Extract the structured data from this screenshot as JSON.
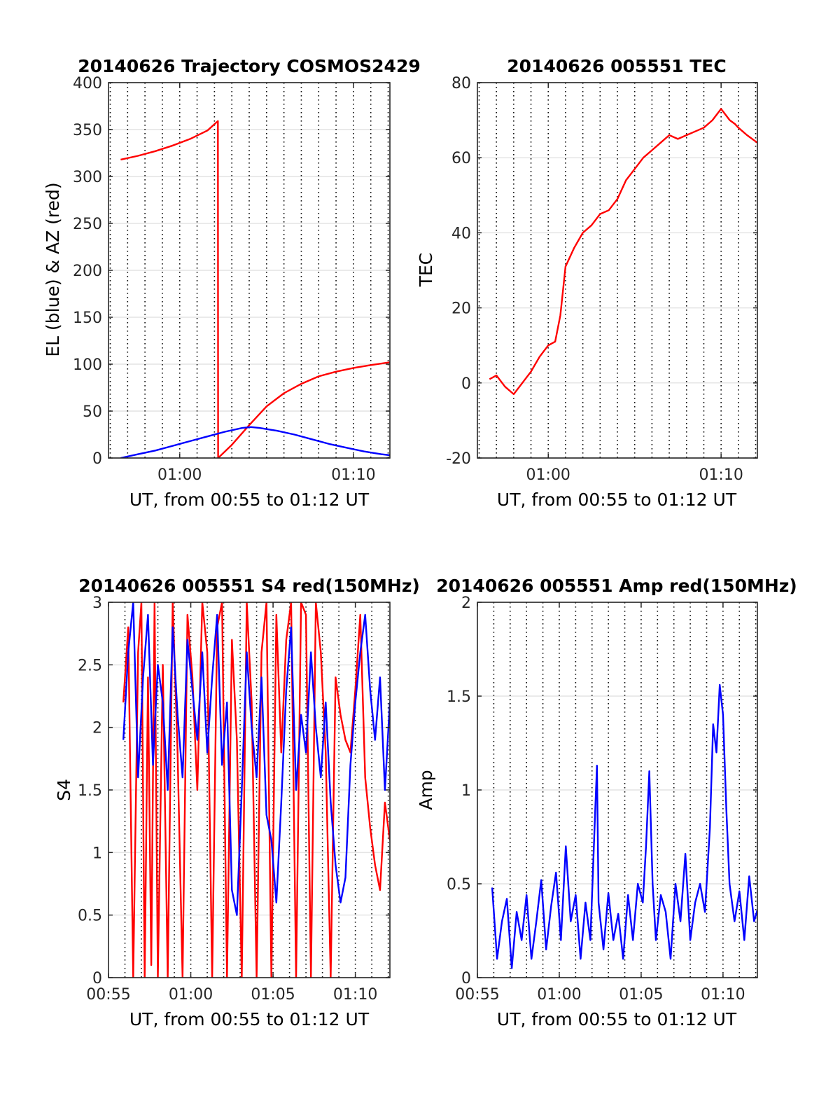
{
  "chart_data": [
    {
      "type": "line",
      "title": "20140626 Trajectory COSMOS2429",
      "xlabel": "UT, from 00:55 to 01:12 UT",
      "ylabel": "EL (blue) & AZ (red)",
      "x_unit": "minutes after 00:00 UT",
      "xlim": [
        55.9,
        72.1
      ],
      "ylim": [
        0,
        400
      ],
      "yticks": [
        0,
        50,
        100,
        150,
        200,
        250,
        300,
        350,
        400
      ],
      "xtick_values": [
        60,
        70
      ],
      "xtick_labels": [
        "01:00",
        "01:10"
      ],
      "grid": true,
      "series": [
        {
          "color": "#ff0000",
          "x": [
            56.6,
            57.6,
            58.6,
            59.6,
            60.6,
            61.6,
            62.2,
            62.21,
            63,
            64,
            65,
            66,
            67,
            68,
            69,
            70,
            71,
            72.1
          ],
          "y": [
            318,
            322,
            327,
            333,
            340,
            349,
            359,
            0,
            14,
            35,
            55,
            69,
            79,
            87,
            92,
            96,
            99,
            102
          ]
        },
        {
          "color": "#0000ff",
          "x": [
            56.6,
            57.6,
            58.6,
            59.6,
            60.6,
            61.6,
            62.6,
            63.6,
            64.1,
            64.6,
            65.6,
            66.6,
            67.6,
            68.6,
            69.6,
            70.6,
            71.6,
            72.1
          ],
          "y": [
            0,
            4,
            8,
            13,
            18,
            23,
            28,
            32,
            33,
            32,
            29,
            25,
            20,
            15,
            11,
            7,
            4,
            3
          ]
        }
      ]
    },
    {
      "type": "line",
      "title": "20140626 005551 TEC",
      "xlabel": "UT, from 00:55 to 01:12 UT",
      "ylabel": "TEC",
      "x_unit": "minutes after 00:00 UT",
      "xlim": [
        55.9,
        72.1
      ],
      "ylim": [
        -20,
        80
      ],
      "yticks": [
        -20,
        0,
        20,
        40,
        60,
        80
      ],
      "xtick_values": [
        60,
        70
      ],
      "xtick_labels": [
        "01:00",
        "01:10"
      ],
      "grid": true,
      "series": [
        {
          "color": "#ff0000",
          "x": [
            56.6,
            57.0,
            57.5,
            58.0,
            58.5,
            59.0,
            59.5,
            60.0,
            60.4,
            60.7,
            61.0,
            61.5,
            62.0,
            62.5,
            63.0,
            63.5,
            64.0,
            64.5,
            65.0,
            65.5,
            66.0,
            66.5,
            67.0,
            67.5,
            68.0,
            68.5,
            69.0,
            69.5,
            70.0,
            70.5,
            70.8,
            71.0,
            71.5,
            72.1
          ],
          "y": [
            1,
            2,
            -1,
            -3,
            0,
            3,
            7,
            10,
            11,
            18,
            31,
            36,
            40,
            42,
            45,
            46,
            49,
            54,
            57,
            60,
            62,
            64,
            66,
            65,
            66,
            67,
            68,
            70,
            73,
            70,
            69,
            68,
            66,
            64
          ]
        }
      ]
    },
    {
      "type": "line",
      "title": "20140626 005551 S4 red(150MHz)",
      "xlabel": "UT, from 00:55 to 01:12 UT",
      "ylabel": "S4",
      "x_unit": "minutes after 00:00 UT",
      "xlim": [
        55,
        72.1
      ],
      "ylim": [
        0,
        3
      ],
      "yticks": [
        0,
        0.5,
        1,
        1.5,
        2,
        2.5,
        3
      ],
      "xtick_values": [
        55,
        60,
        65,
        70
      ],
      "xtick_labels": [
        "00:55",
        "01:00",
        "01:05",
        "01:10"
      ],
      "grid": true,
      "series": [
        {
          "color": "#ff0000",
          "x": [
            55.9,
            56.2,
            56.5,
            56.8,
            57.0,
            57.2,
            57.4,
            57.6,
            57.8,
            58.0,
            58.3,
            58.6,
            58.9,
            59.2,
            59.5,
            59.8,
            60.1,
            60.4,
            60.7,
            61.0,
            61.3,
            61.6,
            61.9,
            62.2,
            62.5,
            62.8,
            63.1,
            63.4,
            63.7,
            64.0,
            64.3,
            64.6,
            64.9,
            65.2,
            65.5,
            65.8,
            66.1,
            66.4,
            66.7,
            67.0,
            67.3,
            67.6,
            67.9,
            68.2,
            68.5,
            68.8,
            69.1,
            69.4,
            69.7,
            70.0,
            70.3,
            70.6,
            70.9,
            71.2,
            71.5,
            71.8,
            72.1
          ],
          "y": [
            2.2,
            2.8,
            0,
            2.6,
            3,
            0,
            2.4,
            0.1,
            3,
            0,
            2.5,
            0,
            3,
            1.8,
            0,
            2.9,
            2.4,
            1.5,
            3,
            2.6,
            0,
            2.8,
            3,
            0,
            2.7,
            1.9,
            0,
            3,
            2.2,
            0,
            2.6,
            3,
            0,
            2.9,
            1.8,
            2.7,
            3,
            0,
            3,
            2.9,
            0,
            3,
            2.6,
            1.8,
            0,
            2.4,
            2.1,
            1.9,
            1.8,
            2.3,
            2.9,
            1.6,
            1.2,
            0.9,
            0.7,
            1.4,
            1.1
          ]
        },
        {
          "color": "#0000ff",
          "x": [
            55.9,
            56.2,
            56.5,
            56.8,
            57.1,
            57.4,
            57.7,
            58.0,
            58.3,
            58.6,
            58.9,
            59.2,
            59.5,
            59.8,
            60.1,
            60.4,
            60.7,
            61.0,
            61.3,
            61.6,
            61.9,
            62.2,
            62.5,
            62.8,
            63.1,
            63.4,
            63.7,
            64.0,
            64.3,
            64.6,
            64.9,
            65.2,
            65.5,
            65.8,
            66.1,
            66.4,
            66.7,
            67.0,
            67.3,
            67.6,
            67.9,
            68.2,
            68.5,
            68.8,
            69.1,
            69.4,
            69.7,
            70.0,
            70.3,
            70.6,
            70.9,
            71.2,
            71.5,
            71.8,
            72.1
          ],
          "y": [
            1.9,
            2.6,
            3,
            1.6,
            2.4,
            2.9,
            1.7,
            2.5,
            2.2,
            1.5,
            2.8,
            2.1,
            1.6,
            2.7,
            2.3,
            1.9,
            2.6,
            1.8,
            2.4,
            2.9,
            1.7,
            2.2,
            0.7,
            0.5,
            1.5,
            2.6,
            2.0,
            1.6,
            2.4,
            1.3,
            1.1,
            0.6,
            1.4,
            2.3,
            2.8,
            1.5,
            2.1,
            1.8,
            2.6,
            2.0,
            1.6,
            2.2,
            1.4,
            0.9,
            0.6,
            0.8,
            1.7,
            2.2,
            2.6,
            2.9,
            2.3,
            1.9,
            2.4,
            1.5,
            2.2
          ]
        }
      ]
    },
    {
      "type": "line",
      "title": "20140626 005551 Amp red(150MHz)",
      "xlabel": "UT, from 00:55 to 01:12 UT",
      "ylabel": "Amp",
      "x_unit": "minutes after 00:00 UT",
      "xlim": [
        55,
        72.1
      ],
      "ylim": [
        0,
        2
      ],
      "yticks": [
        0,
        0.5,
        1,
        1.5,
        2
      ],
      "xtick_values": [
        55,
        60,
        65,
        70
      ],
      "xtick_labels": [
        "00:55",
        "01:00",
        "01:05",
        "01:10"
      ],
      "grid": true,
      "series": [
        {
          "color": "#0000ff",
          "x": [
            55.9,
            56.2,
            56.5,
            56.8,
            57.1,
            57.4,
            57.7,
            58.0,
            58.3,
            58.6,
            58.9,
            59.2,
            59.5,
            59.8,
            60.1,
            60.4,
            60.7,
            61.0,
            61.3,
            61.6,
            61.9,
            62.2,
            62.3,
            62.4,
            62.7,
            63.0,
            63.3,
            63.6,
            63.9,
            64.2,
            64.5,
            64.8,
            65.1,
            65.3,
            65.5,
            65.7,
            65.9,
            66.2,
            66.5,
            66.8,
            67.1,
            67.4,
            67.7,
            68.0,
            68.3,
            68.6,
            68.9,
            69.2,
            69.4,
            69.6,
            69.8,
            70.0,
            70.2,
            70.4,
            70.7,
            71.0,
            71.3,
            71.6,
            71.9,
            72.1
          ],
          "y": [
            0.48,
            0.1,
            0.3,
            0.42,
            0.05,
            0.35,
            0.2,
            0.44,
            0.1,
            0.3,
            0.52,
            0.15,
            0.38,
            0.56,
            0.2,
            0.7,
            0.3,
            0.44,
            0.1,
            0.4,
            0.2,
            0.9,
            1.13,
            0.4,
            0.15,
            0.45,
            0.2,
            0.34,
            0.1,
            0.44,
            0.2,
            0.5,
            0.4,
            0.7,
            1.1,
            0.5,
            0.2,
            0.44,
            0.35,
            0.1,
            0.5,
            0.3,
            0.66,
            0.2,
            0.4,
            0.5,
            0.35,
            0.8,
            1.35,
            1.2,
            1.56,
            1.4,
            0.9,
            0.5,
            0.3,
            0.46,
            0.2,
            0.54,
            0.3,
            0.36
          ]
        }
      ]
    }
  ]
}
